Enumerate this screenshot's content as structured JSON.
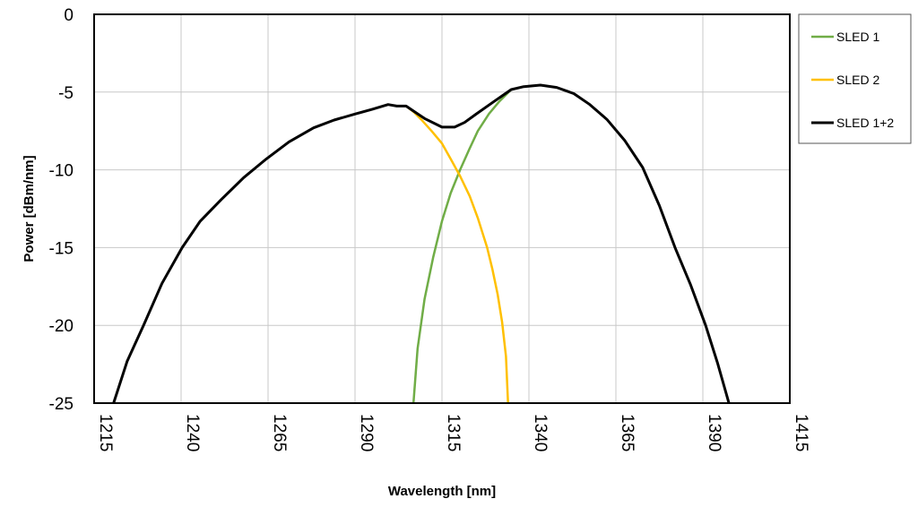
{
  "chart_data": {
    "type": "line",
    "title": "",
    "xlabel": "Wavelength [nm]",
    "ylabel": "Power [dBm/nm]",
    "xlim": [
      1215,
      1415
    ],
    "ylim": [
      -25,
      0
    ],
    "xticks": [
      1215,
      1240,
      1265,
      1290,
      1315,
      1340,
      1365,
      1390,
      1415
    ],
    "yticks": [
      0,
      -5,
      -10,
      -15,
      -20,
      -25
    ],
    "grid": true,
    "legend_position": "right",
    "series": [
      {
        "name": "SLED 1",
        "color": "#70ad47",
        "x": [
          1306.8,
          1308.0,
          1310.0,
          1312.5,
          1315.0,
          1317.5,
          1320.2,
          1322.8,
          1325.3,
          1328.5,
          1331.5,
          1334.9
        ],
        "y": [
          -25,
          -21.5,
          -18.3,
          -15.6,
          -13.3,
          -11.5,
          -10.0,
          -8.7,
          -7.5,
          -6.4,
          -5.6,
          -4.84
        ]
      },
      {
        "name": "SLED 2",
        "color": "#ffc000",
        "x": [
          1304.7,
          1307.0,
          1309.0,
          1312.0,
          1315.0,
          1317.5,
          1320.2,
          1323.0,
          1325.3,
          1328.0,
          1329.5,
          1331.0,
          1332.3,
          1333.4,
          1334.0
        ],
        "y": [
          -5.9,
          -6.3,
          -6.75,
          -7.5,
          -8.3,
          -9.3,
          -10.4,
          -11.7,
          -13.1,
          -15.0,
          -16.4,
          -18.0,
          -19.8,
          -22.0,
          -25
        ]
      },
      {
        "name": "SLED 1+2",
        "color": "#000000",
        "x": [
          1220.6,
          1224.5,
          1229.2,
          1234.5,
          1240.3,
          1245.5,
          1251.6,
          1258.0,
          1264.5,
          1271.0,
          1278.1,
          1284.0,
          1290.2,
          1295.0,
          1299.5,
          1302.0,
          1304.7,
          1310.0,
          1315.0,
          1318.6,
          1321.5,
          1324.6,
          1330.0,
          1334.9,
          1338.5,
          1343.3,
          1348.0,
          1352.9,
          1357.5,
          1362.4,
          1367.5,
          1372.7,
          1377.5,
          1382.0,
          1386.5,
          1390.8,
          1394.2,
          1397.5
        ],
        "y": [
          -25,
          -22.3,
          -20.0,
          -17.3,
          -15.0,
          -13.3,
          -11.9,
          -10.5,
          -9.3,
          -8.2,
          -7.3,
          -6.8,
          -6.4,
          -6.1,
          -5.8,
          -5.9,
          -5.9,
          -6.7,
          -7.25,
          -7.25,
          -6.95,
          -6.45,
          -5.6,
          -4.84,
          -4.65,
          -4.55,
          -4.7,
          -5.1,
          -5.8,
          -6.75,
          -8.1,
          -9.85,
          -12.3,
          -15.0,
          -17.4,
          -20.0,
          -22.4,
          -25
        ]
      }
    ]
  }
}
